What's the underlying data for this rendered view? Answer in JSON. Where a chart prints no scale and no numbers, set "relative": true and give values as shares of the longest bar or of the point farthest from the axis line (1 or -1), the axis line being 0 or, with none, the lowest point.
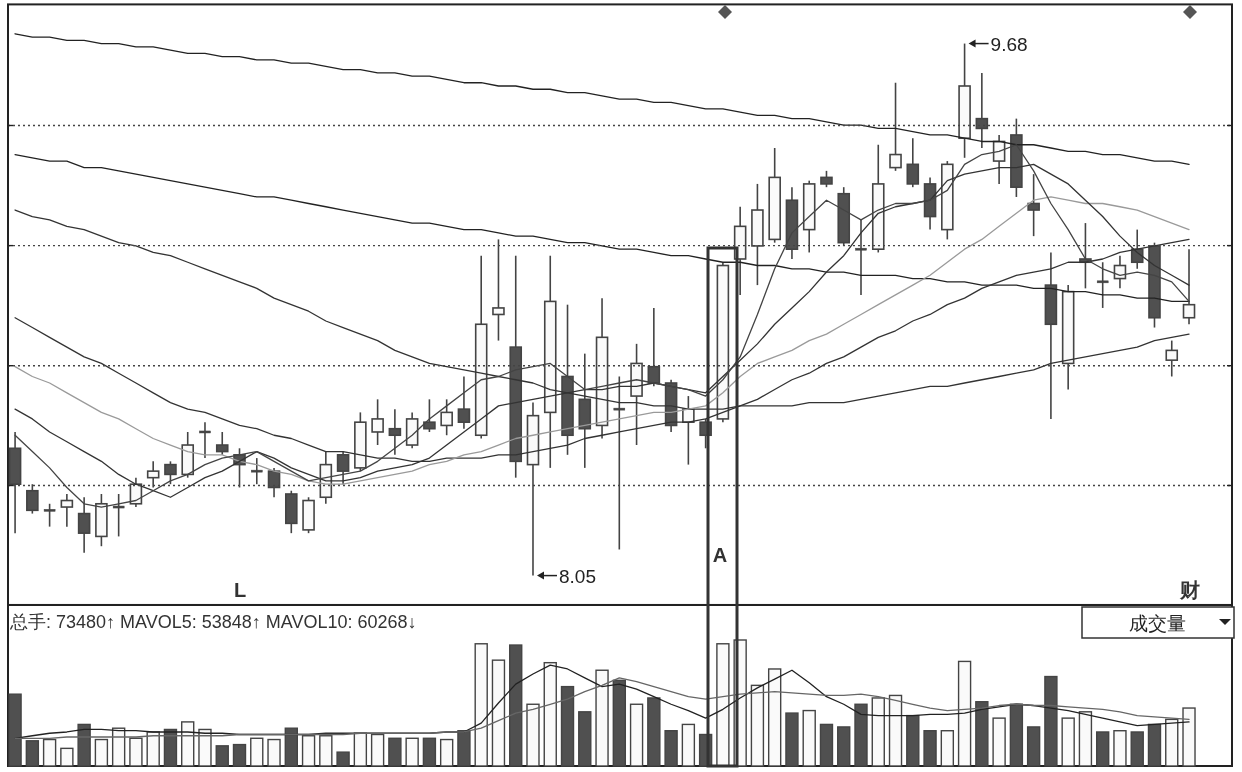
{
  "chart_data": [
    {
      "type": "candlestick",
      "categories": [
        null,
        null,
        null,
        null,
        null,
        null,
        null,
        null,
        null,
        null,
        null,
        null,
        null,
        null,
        null,
        null,
        null,
        null,
        null,
        null,
        null,
        null,
        null,
        null,
        null,
        null,
        null,
        null,
        null,
        null,
        null,
        null,
        null,
        null,
        null,
        null,
        null,
        null,
        null,
        null,
        null,
        null,
        null,
        null,
        null,
        null,
        null,
        null,
        null,
        null,
        null,
        null,
        null,
        null,
        null,
        null,
        null,
        null,
        null,
        null,
        null,
        null,
        null,
        null,
        null,
        null,
        null,
        null,
        null
      ],
      "ohlc": [
        [
          8.44,
          8.49,
          8.18,
          8.33
        ],
        [
          8.31,
          8.33,
          8.24,
          8.25
        ],
        [
          8.25,
          8.27,
          8.2,
          8.25
        ],
        [
          8.26,
          8.3,
          8.2,
          8.28
        ],
        [
          8.24,
          8.29,
          8.12,
          8.18
        ],
        [
          8.17,
          8.3,
          8.14,
          8.27
        ],
        [
          8.26,
          8.3,
          8.17,
          8.26
        ],
        [
          8.27,
          8.35,
          8.26,
          8.33
        ],
        [
          8.35,
          8.4,
          8.32,
          8.37
        ],
        [
          8.39,
          8.4,
          8.33,
          8.36
        ],
        [
          8.36,
          8.49,
          8.35,
          8.45
        ],
        [
          8.49,
          8.52,
          8.41,
          8.49
        ],
        [
          8.45,
          8.49,
          8.42,
          8.43
        ],
        [
          8.42,
          8.44,
          8.32,
          8.39
        ],
        [
          8.37,
          8.41,
          8.33,
          8.37
        ],
        [
          8.37,
          8.38,
          8.29,
          8.32
        ],
        [
          8.3,
          8.31,
          8.18,
          8.21
        ],
        [
          8.19,
          8.29,
          8.18,
          8.28
        ],
        [
          8.29,
          8.43,
          8.27,
          8.39
        ],
        [
          8.42,
          8.43,
          8.33,
          8.37
        ],
        [
          8.38,
          8.55,
          8.37,
          8.52
        ],
        [
          8.49,
          8.59,
          8.45,
          8.53
        ],
        [
          8.5,
          8.56,
          8.42,
          8.48
        ],
        [
          8.45,
          8.55,
          8.44,
          8.53
        ],
        [
          8.52,
          8.59,
          8.49,
          8.5
        ],
        [
          8.51,
          8.59,
          8.48,
          8.55
        ],
        [
          8.56,
          8.66,
          8.5,
          8.52
        ],
        [
          8.48,
          9.03,
          8.47,
          8.82
        ],
        [
          8.85,
          9.08,
          8.77,
          8.87
        ],
        [
          8.75,
          9.03,
          8.35,
          8.4
        ],
        [
          8.39,
          8.58,
          8.05,
          8.54
        ],
        [
          8.55,
          9.03,
          8.38,
          8.89
        ],
        [
          8.66,
          8.88,
          8.42,
          8.48
        ],
        [
          8.59,
          8.73,
          8.38,
          8.5
        ],
        [
          8.51,
          8.9,
          8.47,
          8.78
        ],
        [
          8.56,
          8.66,
          8.13,
          8.56
        ],
        [
          8.6,
          8.76,
          8.45,
          8.7
        ],
        [
          8.69,
          8.87,
          8.63,
          8.64
        ],
        [
          8.64,
          8.65,
          8.49,
          8.51
        ],
        [
          8.52,
          8.6,
          8.39,
          8.56
        ],
        [
          8.52,
          8.53,
          8.44,
          8.48
        ],
        [
          8.53,
          9.01,
          8.52,
          9.0
        ],
        [
          9.02,
          9.18,
          8.91,
          9.12
        ],
        [
          9.06,
          9.25,
          8.94,
          9.17
        ],
        [
          9.08,
          9.36,
          9.07,
          9.27
        ],
        [
          9.2,
          9.24,
          9.02,
          9.05
        ],
        [
          9.11,
          9.26,
          9.04,
          9.25
        ],
        [
          9.27,
          9.29,
          9.24,
          9.25
        ],
        [
          9.22,
          9.24,
          9.06,
          9.07
        ],
        [
          9.05,
          9.14,
          8.91,
          9.05
        ],
        [
          9.05,
          9.37,
          9.04,
          9.25
        ],
        [
          9.3,
          9.56,
          9.29,
          9.34
        ],
        [
          9.31,
          9.39,
          9.24,
          9.25
        ],
        [
          9.25,
          9.27,
          9.11,
          9.15
        ],
        [
          9.11,
          9.32,
          9.08,
          9.31
        ],
        [
          9.39,
          9.68,
          9.33,
          9.55
        ],
        [
          9.45,
          9.59,
          9.36,
          9.42
        ],
        [
          9.32,
          9.4,
          9.25,
          9.38
        ],
        [
          9.4,
          9.45,
          9.21,
          9.24
        ],
        [
          9.19,
          9.28,
          9.09,
          9.17
        ],
        [
          8.94,
          9.04,
          8.53,
          8.82
        ],
        [
          8.7,
          8.94,
          8.62,
          8.92
        ],
        [
          9.02,
          9.13,
          8.93,
          9.01
        ],
        [
          8.95,
          9.01,
          8.87,
          8.95
        ],
        [
          8.96,
          9.03,
          8.93,
          9.0
        ],
        [
          9.05,
          9.11,
          8.99,
          9.01
        ],
        [
          9.06,
          9.07,
          8.81,
          8.84
        ],
        [
          8.71,
          8.77,
          8.66,
          8.74
        ],
        [
          8.84,
          9.05,
          8.82,
          8.88
        ]
      ],
      "series": [
        {
          "type": "line",
          "color": "#222222",
          "values": [
            9.71,
            9.7,
            9.7,
            9.69,
            9.69,
            9.68,
            9.68,
            9.67,
            9.67,
            9.66,
            9.65,
            9.65,
            9.64,
            9.64,
            9.63,
            9.63,
            9.62,
            9.62,
            9.61,
            9.6,
            9.6,
            9.59,
            9.59,
            9.58,
            9.58,
            9.57,
            9.56,
            9.56,
            9.55,
            9.55,
            9.54,
            9.54,
            9.53,
            9.53,
            9.52,
            9.51,
            9.51,
            9.5,
            9.5,
            9.49,
            9.48,
            9.48,
            9.47,
            9.46,
            9.46,
            9.45,
            9.45,
            9.44,
            9.43,
            9.43,
            9.42,
            9.42,
            9.41,
            9.4,
            9.4,
            9.39,
            9.38,
            9.38,
            9.37,
            9.37,
            9.36,
            9.35,
            9.35,
            9.34,
            9.34,
            9.33,
            9.32,
            9.32,
            9.31
          ]
        },
        {
          "type": "line",
          "color": "#222222",
          "values": [
            9.34,
            9.33,
            9.32,
            9.32,
            9.3,
            9.3,
            9.29,
            9.28,
            9.27,
            9.26,
            9.25,
            9.24,
            9.23,
            9.22,
            9.21,
            9.21,
            9.2,
            9.19,
            9.18,
            9.17,
            9.16,
            9.15,
            9.14,
            9.13,
            9.13,
            9.12,
            9.11,
            9.11,
            9.1,
            9.09,
            9.09,
            9.08,
            9.07,
            9.07,
            9.06,
            9.05,
            9.05,
            9.04,
            9.03,
            9.03,
            9.02,
            9.01,
            9.01,
            9.0,
            9.0,
            8.99,
            8.99,
            8.98,
            8.98,
            8.97,
            8.97,
            8.97,
            8.96,
            8.96,
            8.95,
            8.95,
            8.94,
            8.94,
            8.94,
            8.93,
            8.93,
            8.92,
            8.92,
            8.91,
            8.91,
            8.9,
            8.9,
            8.89,
            8.89
          ]
        },
        {
          "type": "line",
          "color": "#333333",
          "values": [
            9.17,
            9.15,
            9.14,
            9.12,
            9.11,
            9.09,
            9.07,
            9.06,
            9.04,
            9.03,
            9.01,
            8.99,
            8.97,
            8.95,
            8.93,
            8.9,
            8.88,
            8.86,
            8.83,
            8.81,
            8.79,
            8.77,
            8.74,
            8.72,
            8.7,
            8.69,
            8.68,
            8.67,
            8.66,
            8.65,
            8.64,
            8.62,
            8.61,
            8.6,
            8.59,
            8.58,
            8.58,
            8.57,
            8.57,
            8.56,
            8.56,
            8.56,
            8.57,
            8.57,
            8.57,
            8.57,
            8.58,
            8.58,
            8.58,
            8.59,
            8.6,
            8.61,
            8.62,
            8.63,
            8.63,
            8.64,
            8.65,
            8.66,
            8.67,
            8.68,
            8.7,
            8.71,
            8.72,
            8.73,
            8.74,
            8.75,
            8.77,
            8.78,
            8.79
          ]
        },
        {
          "type": "line",
          "color": "#333333",
          "values": [
            8.84,
            8.81,
            8.78,
            8.75,
            8.72,
            8.7,
            8.67,
            8.64,
            8.61,
            8.58,
            8.56,
            8.55,
            8.53,
            8.51,
            8.5,
            8.48,
            8.47,
            8.45,
            8.43,
            8.43,
            8.42,
            8.41,
            8.41,
            8.4,
            8.4,
            8.41,
            8.41,
            8.41,
            8.42,
            8.42,
            8.43,
            8.44,
            8.45,
            8.47,
            8.48,
            8.49,
            8.5,
            8.51,
            8.52,
            8.52,
            8.53,
            8.55,
            8.57,
            8.59,
            8.62,
            8.65,
            8.67,
            8.7,
            8.72,
            8.75,
            8.78,
            8.8,
            8.83,
            8.85,
            8.88,
            8.9,
            8.93,
            8.95,
            8.97,
            8.98,
            8.99,
            9.01,
            9.01,
            9.02,
            9.04,
            9.05,
            9.06,
            9.07,
            9.08
          ]
        },
        {
          "type": "line",
          "color": "#9a9a9a",
          "values": [
            8.69,
            8.66,
            8.64,
            8.61,
            8.58,
            8.55,
            8.53,
            8.5,
            8.47,
            8.45,
            8.43,
            8.42,
            8.42,
            8.4,
            8.39,
            8.37,
            8.36,
            8.34,
            8.33,
            8.33,
            8.34,
            8.35,
            8.36,
            8.37,
            8.39,
            8.4,
            8.42,
            8.43,
            8.45,
            8.47,
            8.48,
            8.49,
            8.5,
            8.51,
            8.52,
            8.53,
            8.54,
            8.55,
            8.55,
            8.56,
            8.57,
            8.61,
            8.66,
            8.7,
            8.72,
            8.74,
            8.77,
            8.79,
            8.82,
            8.85,
            8.88,
            8.91,
            8.94,
            8.97,
            9.01,
            9.05,
            9.08,
            9.12,
            9.16,
            9.2,
            9.21,
            9.2,
            9.19,
            9.19,
            9.18,
            9.17,
            9.15,
            9.13,
            9.11
          ]
        },
        {
          "type": "line",
          "color": "#333333",
          "values": [
            8.56,
            8.53,
            8.49,
            8.46,
            8.43,
            8.4,
            8.36,
            8.33,
            8.31,
            8.29,
            8.32,
            8.35,
            8.37,
            8.4,
            8.43,
            8.41,
            8.38,
            8.36,
            8.34,
            8.34,
            8.35,
            8.37,
            8.38,
            8.39,
            8.41,
            8.45,
            8.49,
            8.53,
            8.57,
            8.58,
            8.59,
            8.6,
            8.61,
            8.62,
            8.62,
            8.63,
            8.63,
            8.64,
            8.63,
            8.62,
            8.61,
            8.66,
            8.71,
            8.76,
            8.82,
            8.87,
            8.92,
            8.98,
            9.03,
            9.1,
            9.16,
            9.18,
            9.19,
            9.2,
            9.26,
            9.28,
            9.29,
            9.3,
            9.3,
            9.31,
            9.28,
            9.25,
            9.2,
            9.15,
            9.09,
            9.04,
            9.0,
            8.97,
            8.94
          ]
        },
        {
          "type": "line",
          "color": "#444444",
          "values": [
            8.48,
            8.43,
            8.38,
            8.32,
            8.27,
            8.26,
            8.27,
            8.28,
            8.31,
            8.34,
            8.36,
            8.39,
            8.41,
            8.42,
            8.43,
            8.4,
            8.37,
            8.34,
            8.35,
            8.36,
            8.37,
            8.4,
            8.44,
            8.48,
            8.53,
            8.57,
            8.61,
            8.65,
            8.66,
            8.68,
            8.69,
            8.7,
            8.66,
            8.62,
            8.63,
            8.64,
            8.65,
            8.64,
            8.63,
            8.62,
            8.6,
            8.65,
            8.72,
            8.85,
            8.99,
            9.1,
            9.15,
            9.2,
            9.17,
            9.14,
            9.17,
            9.19,
            9.19,
            9.2,
            9.23,
            9.31,
            9.34,
            9.35,
            9.37,
            9.29,
            9.19,
            9.11,
            9.02,
            8.99,
            8.97,
            8.98,
            8.97,
            8.95,
            8.89
          ]
        }
      ],
      "ylim": [
        7.96,
        9.8
      ],
      "yticks": [
        {
          "value": 8.326,
          "label": null
        },
        {
          "value": 8.693,
          "label": null
        },
        {
          "value": 9.061,
          "label": null
        },
        {
          "value": 9.429,
          "label": null
        }
      ],
      "grid": "y",
      "annotations": [
        "9.68",
        "8.05",
        "A",
        "L",
        "财"
      ]
    },
    {
      "type": "bar",
      "relative": true,
      "title": "总手: 73480↑ MAVOL5: 53848↑ MAVOL10: 60268↓",
      "categories": [
        null,
        null,
        null,
        null,
        null,
        null,
        null,
        null,
        null,
        null,
        null,
        null,
        null,
        null,
        null,
        null,
        null,
        null,
        null,
        null,
        null,
        null,
        null,
        null,
        null,
        null,
        null,
        null,
        null,
        null,
        null,
        null,
        null,
        null,
        null,
        null,
        null,
        null,
        null,
        null,
        null,
        null,
        null,
        null,
        null,
        null,
        null,
        null,
        null,
        null,
        null,
        null,
        null,
        null,
        null,
        null,
        null,
        null,
        null,
        null,
        null,
        null,
        null,
        null,
        null,
        null,
        null,
        null,
        null
      ],
      "series": [
        {
          "type": "bar",
          "values": [
            0.57,
            0.2,
            0.21,
            0.14,
            0.33,
            0.21,
            0.3,
            0.22,
            0.27,
            0.29,
            0.35,
            0.29,
            0.16,
            0.17,
            0.22,
            0.21,
            0.3,
            0.24,
            0.24,
            0.11,
            0.26,
            0.25,
            0.22,
            0.22,
            0.22,
            0.21,
            0.28,
            0.97,
            0.84,
            0.96,
            0.49,
            0.82,
            0.63,
            0.43,
            0.76,
            0.68,
            0.49,
            0.54,
            0.28,
            0.33,
            0.25,
            0.97,
            1.0,
            0.64,
            0.77,
            0.42,
            0.44,
            0.33,
            0.31,
            0.49,
            0.54,
            0.56,
            0.4,
            0.28,
            0.28,
            0.83,
            0.51,
            0.38,
            0.49,
            0.31,
            0.71,
            0.38,
            0.43,
            0.27,
            0.28,
            0.27,
            0.33,
            0.37,
            0.46
          ],
          "colors": [
            "#505050",
            "#505050",
            "#ffffff",
            "#ffffff",
            "#505050",
            "#ffffff",
            "#ffffff",
            "#ffffff",
            "#ffffff",
            "#505050",
            "#ffffff",
            "#ffffff",
            "#505050",
            "#505050",
            "#ffffff",
            "#ffffff",
            "#505050",
            "#ffffff",
            "#ffffff",
            "#505050",
            "#ffffff",
            "#ffffff",
            "#505050",
            "#ffffff",
            "#505050",
            "#ffffff",
            "#505050",
            "#ffffff",
            "#ffffff",
            "#505050",
            "#ffffff",
            "#ffffff",
            "#505050",
            "#505050",
            "#ffffff",
            "#505050",
            "#ffffff",
            "#505050",
            "#505050",
            "#ffffff",
            "#505050",
            "#ffffff",
            "#ffffff",
            "#ffffff",
            "#ffffff",
            "#505050",
            "#ffffff",
            "#505050",
            "#505050",
            "#505050",
            "#ffffff",
            "#ffffff",
            "#505050",
            "#505050",
            "#ffffff",
            "#ffffff",
            "#505050",
            "#ffffff",
            "#505050",
            "#505050",
            "#505050",
            "#ffffff",
            "#ffffff",
            "#505050",
            "#ffffff",
            "#505050",
            "#505050",
            "#ffffff",
            "#ffffff"
          ]
        },
        {
          "type": "line",
          "color": "#222222",
          "values": [
            0.22,
            0.24,
            0.26,
            0.27,
            0.29,
            0.29,
            0.28,
            0.28,
            0.27,
            0.27,
            0.27,
            0.26,
            0.26,
            0.25,
            0.25,
            0.25,
            0.25,
            0.25,
            0.26,
            0.26,
            0.26,
            0.26,
            0.26,
            0.26,
            0.26,
            0.27,
            0.27,
            0.34,
            0.5,
            0.65,
            0.73,
            0.8,
            0.77,
            0.7,
            0.63,
            0.65,
            0.61,
            0.55,
            0.49,
            0.44,
            0.38,
            0.45,
            0.54,
            0.62,
            0.69,
            0.76,
            0.66,
            0.55,
            0.49,
            0.41,
            0.4,
            0.4,
            0.4,
            0.41,
            0.41,
            0.42,
            0.45,
            0.47,
            0.49,
            0.48,
            0.46,
            0.44,
            0.41,
            0.38,
            0.35,
            0.32,
            0.33,
            0.34,
            0.35
          ]
        },
        {
          "type": "line",
          "color": "#666666",
          "values": [
            0.22,
            0.22,
            0.22,
            0.23,
            0.23,
            0.23,
            0.23,
            0.23,
            0.24,
            0.24,
            0.24,
            0.24,
            0.24,
            0.25,
            0.25,
            0.25,
            0.25,
            0.25,
            0.25,
            0.25,
            0.26,
            0.26,
            0.26,
            0.26,
            0.26,
            0.27,
            0.27,
            0.3,
            0.36,
            0.42,
            0.45,
            0.49,
            0.53,
            0.59,
            0.64,
            0.7,
            0.67,
            0.63,
            0.59,
            0.55,
            0.53,
            0.55,
            0.57,
            0.58,
            0.59,
            0.58,
            0.57,
            0.56,
            0.56,
            0.57,
            0.55,
            0.52,
            0.49,
            0.46,
            0.44,
            0.45,
            0.46,
            0.48,
            0.49,
            0.48,
            0.48,
            0.47,
            0.46,
            0.45,
            0.43,
            0.4,
            0.39,
            0.38,
            0.37
          ]
        }
      ],
      "annotations": [
        "成交量"
      ]
    }
  ]
}
